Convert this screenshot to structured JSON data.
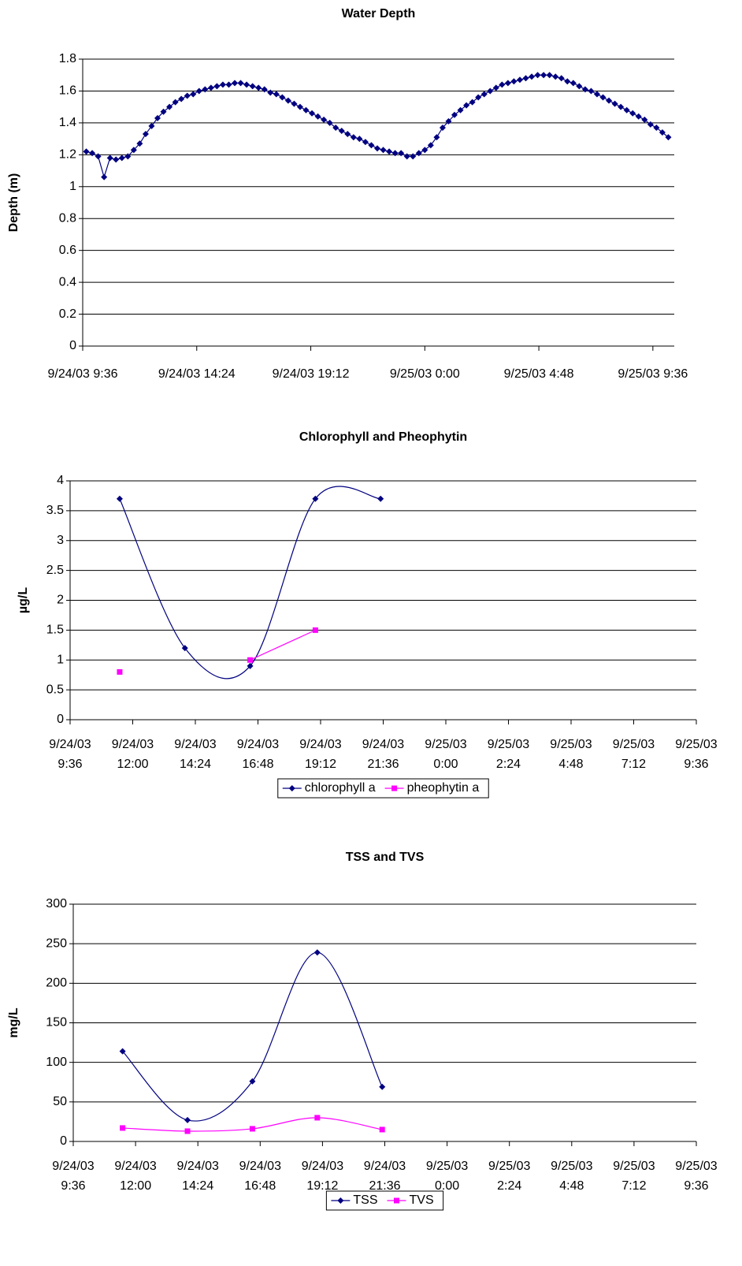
{
  "chart_data": [
    {
      "type": "line",
      "title": "Water Depth",
      "y_label": "Depth (m)",
      "color": "#000080",
      "xlim": [
        "9/24/03 9:36",
        "9/25/03 10:30"
      ],
      "xticks": [
        "9/24/03 9:36",
        "9/24/03 14:24",
        "9/24/03 19:12",
        "9/25/03 0:00",
        "9/25/03 4:48",
        "9/25/03 9:36"
      ],
      "ylim": [
        0,
        1.8
      ],
      "yticks": [
        0,
        0.2,
        0.4,
        0.6,
        0.8,
        1,
        1.2,
        1.4,
        1.6,
        1.8
      ],
      "grid": true,
      "x": [
        "9/24/03 9:45",
        "9/24/03 10:00",
        "9/24/03 10:15",
        "9/24/03 10:30",
        "9/24/03 10:45",
        "9/24/03 11:00",
        "9/24/03 11:15",
        "9/24/03 11:30",
        "9/24/03 11:45",
        "9/24/03 12:00",
        "9/24/03 12:15",
        "9/24/03 12:30",
        "9/24/03 12:45",
        "9/24/03 13:00",
        "9/24/03 13:15",
        "9/24/03 13:30",
        "9/24/03 13:45",
        "9/24/03 14:00",
        "9/24/03 14:15",
        "9/24/03 14:30",
        "9/24/03 14:45",
        "9/24/03 15:00",
        "9/24/03 15:15",
        "9/24/03 15:30",
        "9/24/03 15:45",
        "9/24/03 16:00",
        "9/24/03 16:15",
        "9/24/03 16:30",
        "9/24/03 16:45",
        "9/24/03 17:00",
        "9/24/03 17:15",
        "9/24/03 17:30",
        "9/24/03 17:45",
        "9/24/03 18:00",
        "9/24/03 18:15",
        "9/24/03 18:30",
        "9/24/03 18:45",
        "9/24/03 19:00",
        "9/24/03 19:15",
        "9/24/03 19:30",
        "9/24/03 19:45",
        "9/24/03 20:00",
        "9/24/03 20:15",
        "9/24/03 20:30",
        "9/24/03 20:45",
        "9/24/03 21:00",
        "9/24/03 21:15",
        "9/24/03 21:30",
        "9/24/03 21:45",
        "9/24/03 22:00",
        "9/24/03 22:15",
        "9/24/03 22:30",
        "9/24/03 22:45",
        "9/24/03 23:00",
        "9/24/03 23:15",
        "9/24/03 23:30",
        "9/24/03 23:45",
        "9/25/03 0:00",
        "9/25/03 0:15",
        "9/25/03 0:30",
        "9/25/03 0:45",
        "9/25/03 1:00",
        "9/25/03 1:15",
        "9/25/03 1:30",
        "9/25/03 1:45",
        "9/25/03 2:00",
        "9/25/03 2:15",
        "9/25/03 2:30",
        "9/25/03 2:45",
        "9/25/03 3:00",
        "9/25/03 3:15",
        "9/25/03 3:30",
        "9/25/03 3:45",
        "9/25/03 4:00",
        "9/25/03 4:15",
        "9/25/03 4:30",
        "9/25/03 4:45",
        "9/25/03 5:00",
        "9/25/03 5:15",
        "9/25/03 5:30",
        "9/25/03 5:45",
        "9/25/03 6:00",
        "9/25/03 6:15",
        "9/25/03 6:30",
        "9/25/03 6:45",
        "9/25/03 7:00",
        "9/25/03 7:15",
        "9/25/03 7:30",
        "9/25/03 7:45",
        "9/25/03 8:00",
        "9/25/03 8:15",
        "9/25/03 8:30",
        "9/25/03 8:45",
        "9/25/03 9:00",
        "9/25/03 9:15",
        "9/25/03 9:30",
        "9/25/03 9:45",
        "9/25/03 10:00",
        "9/25/03 10:15"
      ],
      "values": [
        1.22,
        1.21,
        1.19,
        1.06,
        1.18,
        1.17,
        1.18,
        1.19,
        1.23,
        1.27,
        1.33,
        1.38,
        1.43,
        1.47,
        1.5,
        1.53,
        1.55,
        1.57,
        1.58,
        1.6,
        1.61,
        1.62,
        1.63,
        1.64,
        1.64,
        1.65,
        1.65,
        1.64,
        1.63,
        1.62,
        1.61,
        1.59,
        1.58,
        1.56,
        1.54,
        1.52,
        1.5,
        1.48,
        1.46,
        1.44,
        1.42,
        1.4,
        1.37,
        1.35,
        1.33,
        1.31,
        1.3,
        1.28,
        1.26,
        1.24,
        1.23,
        1.22,
        1.21,
        1.21,
        1.19,
        1.19,
        1.21,
        1.23,
        1.26,
        1.31,
        1.37,
        1.41,
        1.45,
        1.48,
        1.51,
        1.53,
        1.56,
        1.58,
        1.6,
        1.62,
        1.64,
        1.65,
        1.66,
        1.67,
        1.68,
        1.69,
        1.7,
        1.7,
        1.7,
        1.69,
        1.68,
        1.66,
        1.65,
        1.63,
        1.61,
        1.6,
        1.58,
        1.56,
        1.54,
        1.52,
        1.5,
        1.48,
        1.46,
        1.44,
        1.42,
        1.39,
        1.37,
        1.34,
        1.31
      ]
    },
    {
      "type": "line",
      "title": "Chlorophyll and Pheophytin",
      "y_label": "µg/L",
      "smooth": true,
      "legend": "bottom",
      "grid": true,
      "xlim": [
        "9/24/03 9:36",
        "9/25/03 9:36"
      ],
      "xticks": [
        "9/24/03 9:36",
        "9/24/03 12:00",
        "9/24/03 14:24",
        "9/24/03 16:48",
        "9/24/03 19:12",
        "9/24/03 21:36",
        "9/25/03 0:00",
        "9/25/03 2:24",
        "9/25/03 4:48",
        "9/25/03 7:12",
        "9/25/03 9:36"
      ],
      "ylim": [
        0,
        4
      ],
      "yticks": [
        0,
        0.5,
        1,
        1.5,
        2,
        2.5,
        3,
        3.5,
        4
      ],
      "x": [
        "9/24/03 11:30",
        "9/24/03 14:00",
        "9/24/03 16:30",
        "9/24/03 19:00",
        "9/24/03 21:30"
      ],
      "series": [
        {
          "name": "chlorophyll a",
          "color": "#000080",
          "values": [
            3.7,
            1.2,
            0.9,
            3.7,
            3.7
          ]
        },
        {
          "name": "pheophytin a",
          "color": "#ff00ff",
          "values": [
            0.8,
            null,
            1.0,
            1.5,
            null
          ]
        }
      ]
    },
    {
      "type": "line",
      "title": "TSS and TVS",
      "y_label": "mg/L",
      "smooth": true,
      "legend": "bottom",
      "grid": true,
      "xlim": [
        "9/24/03 9:36",
        "9/25/03 9:36"
      ],
      "xticks": [
        "9/24/03 9:36",
        "9/24/03 12:00",
        "9/24/03 14:24",
        "9/24/03 16:48",
        "9/24/03 19:12",
        "9/24/03 21:36",
        "9/25/03 0:00",
        "9/25/03 2:24",
        "9/25/03 4:48",
        "9/25/03 7:12",
        "9/25/03 9:36"
      ],
      "ylim": [
        0,
        300
      ],
      "yticks": [
        0,
        50,
        100,
        150,
        200,
        250,
        300
      ],
      "x": [
        "9/24/03 11:30",
        "9/24/03 14:00",
        "9/24/03 16:30",
        "9/24/03 19:00",
        "9/24/03 21:30"
      ],
      "series": [
        {
          "name": "TSS",
          "color": "#000080",
          "values": [
            114,
            27,
            76,
            239,
            69
          ]
        },
        {
          "name": "TVS",
          "color": "#ff00ff",
          "values": [
            17,
            13,
            16,
            30,
            15
          ]
        }
      ]
    }
  ]
}
